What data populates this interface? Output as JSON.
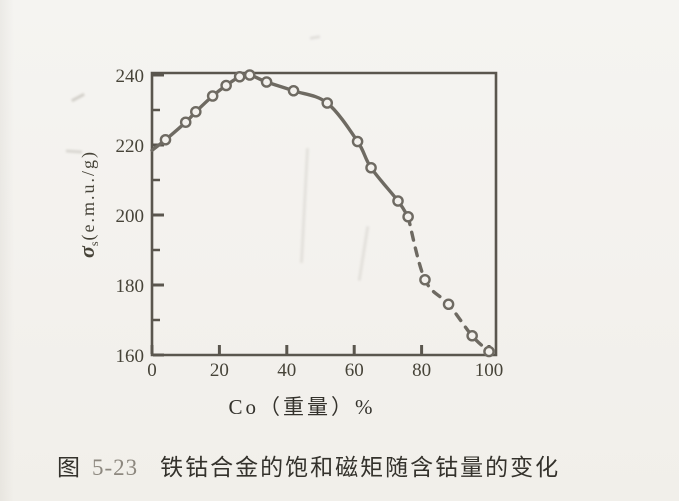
{
  "figure": {
    "caption_prefix": "图",
    "caption_number": "5-23",
    "caption_text": "铁钴合金的饱和磁矩随含钴量的变化"
  },
  "chart_data": {
    "type": "line",
    "title": "",
    "xlabel": "Co（重量）%",
    "ylabel": "σs(e.m.u./g)",
    "ylabel_parts": {
      "symbol": "σ",
      "subscript": "s",
      "unit": "(e.m.u./g)"
    },
    "x_range": [
      0,
      102
    ],
    "y_range": [
      160,
      241
    ],
    "x_ticks": [
      0,
      20,
      40,
      60,
      80,
      100
    ],
    "y_ticks_major": [
      160,
      180,
      200,
      220,
      240
    ],
    "y_ticks_minor": [
      170,
      190,
      210,
      230
    ],
    "grid": false,
    "legend": null,
    "line_style": {
      "solid_until_x": 76,
      "dashed_after": true,
      "marker": "open-circle"
    },
    "curve_start": [
      0,
      218.5
    ],
    "points": [
      [
        4,
        221.5
      ],
      [
        10,
        226.5
      ],
      [
        13,
        229.5
      ],
      [
        18,
        234
      ],
      [
        22,
        237
      ],
      [
        26,
        239.5
      ],
      [
        29,
        240
      ],
      [
        34,
        238
      ],
      [
        42,
        235.5
      ],
      [
        52,
        232
      ],
      [
        61,
        221
      ],
      [
        65,
        213.5
      ],
      [
        73,
        204
      ],
      [
        76,
        199.5
      ],
      [
        81,
        181.5
      ],
      [
        88,
        174.5
      ],
      [
        95,
        165.5
      ],
      [
        100,
        161
      ]
    ]
  },
  "colors": {
    "paper": "#f3f1ed",
    "axis": "#5a564e",
    "curve": "#6e6a62",
    "tick_text": "#474439",
    "caption": "#34322c",
    "caption_number": "#8d887f"
  }
}
